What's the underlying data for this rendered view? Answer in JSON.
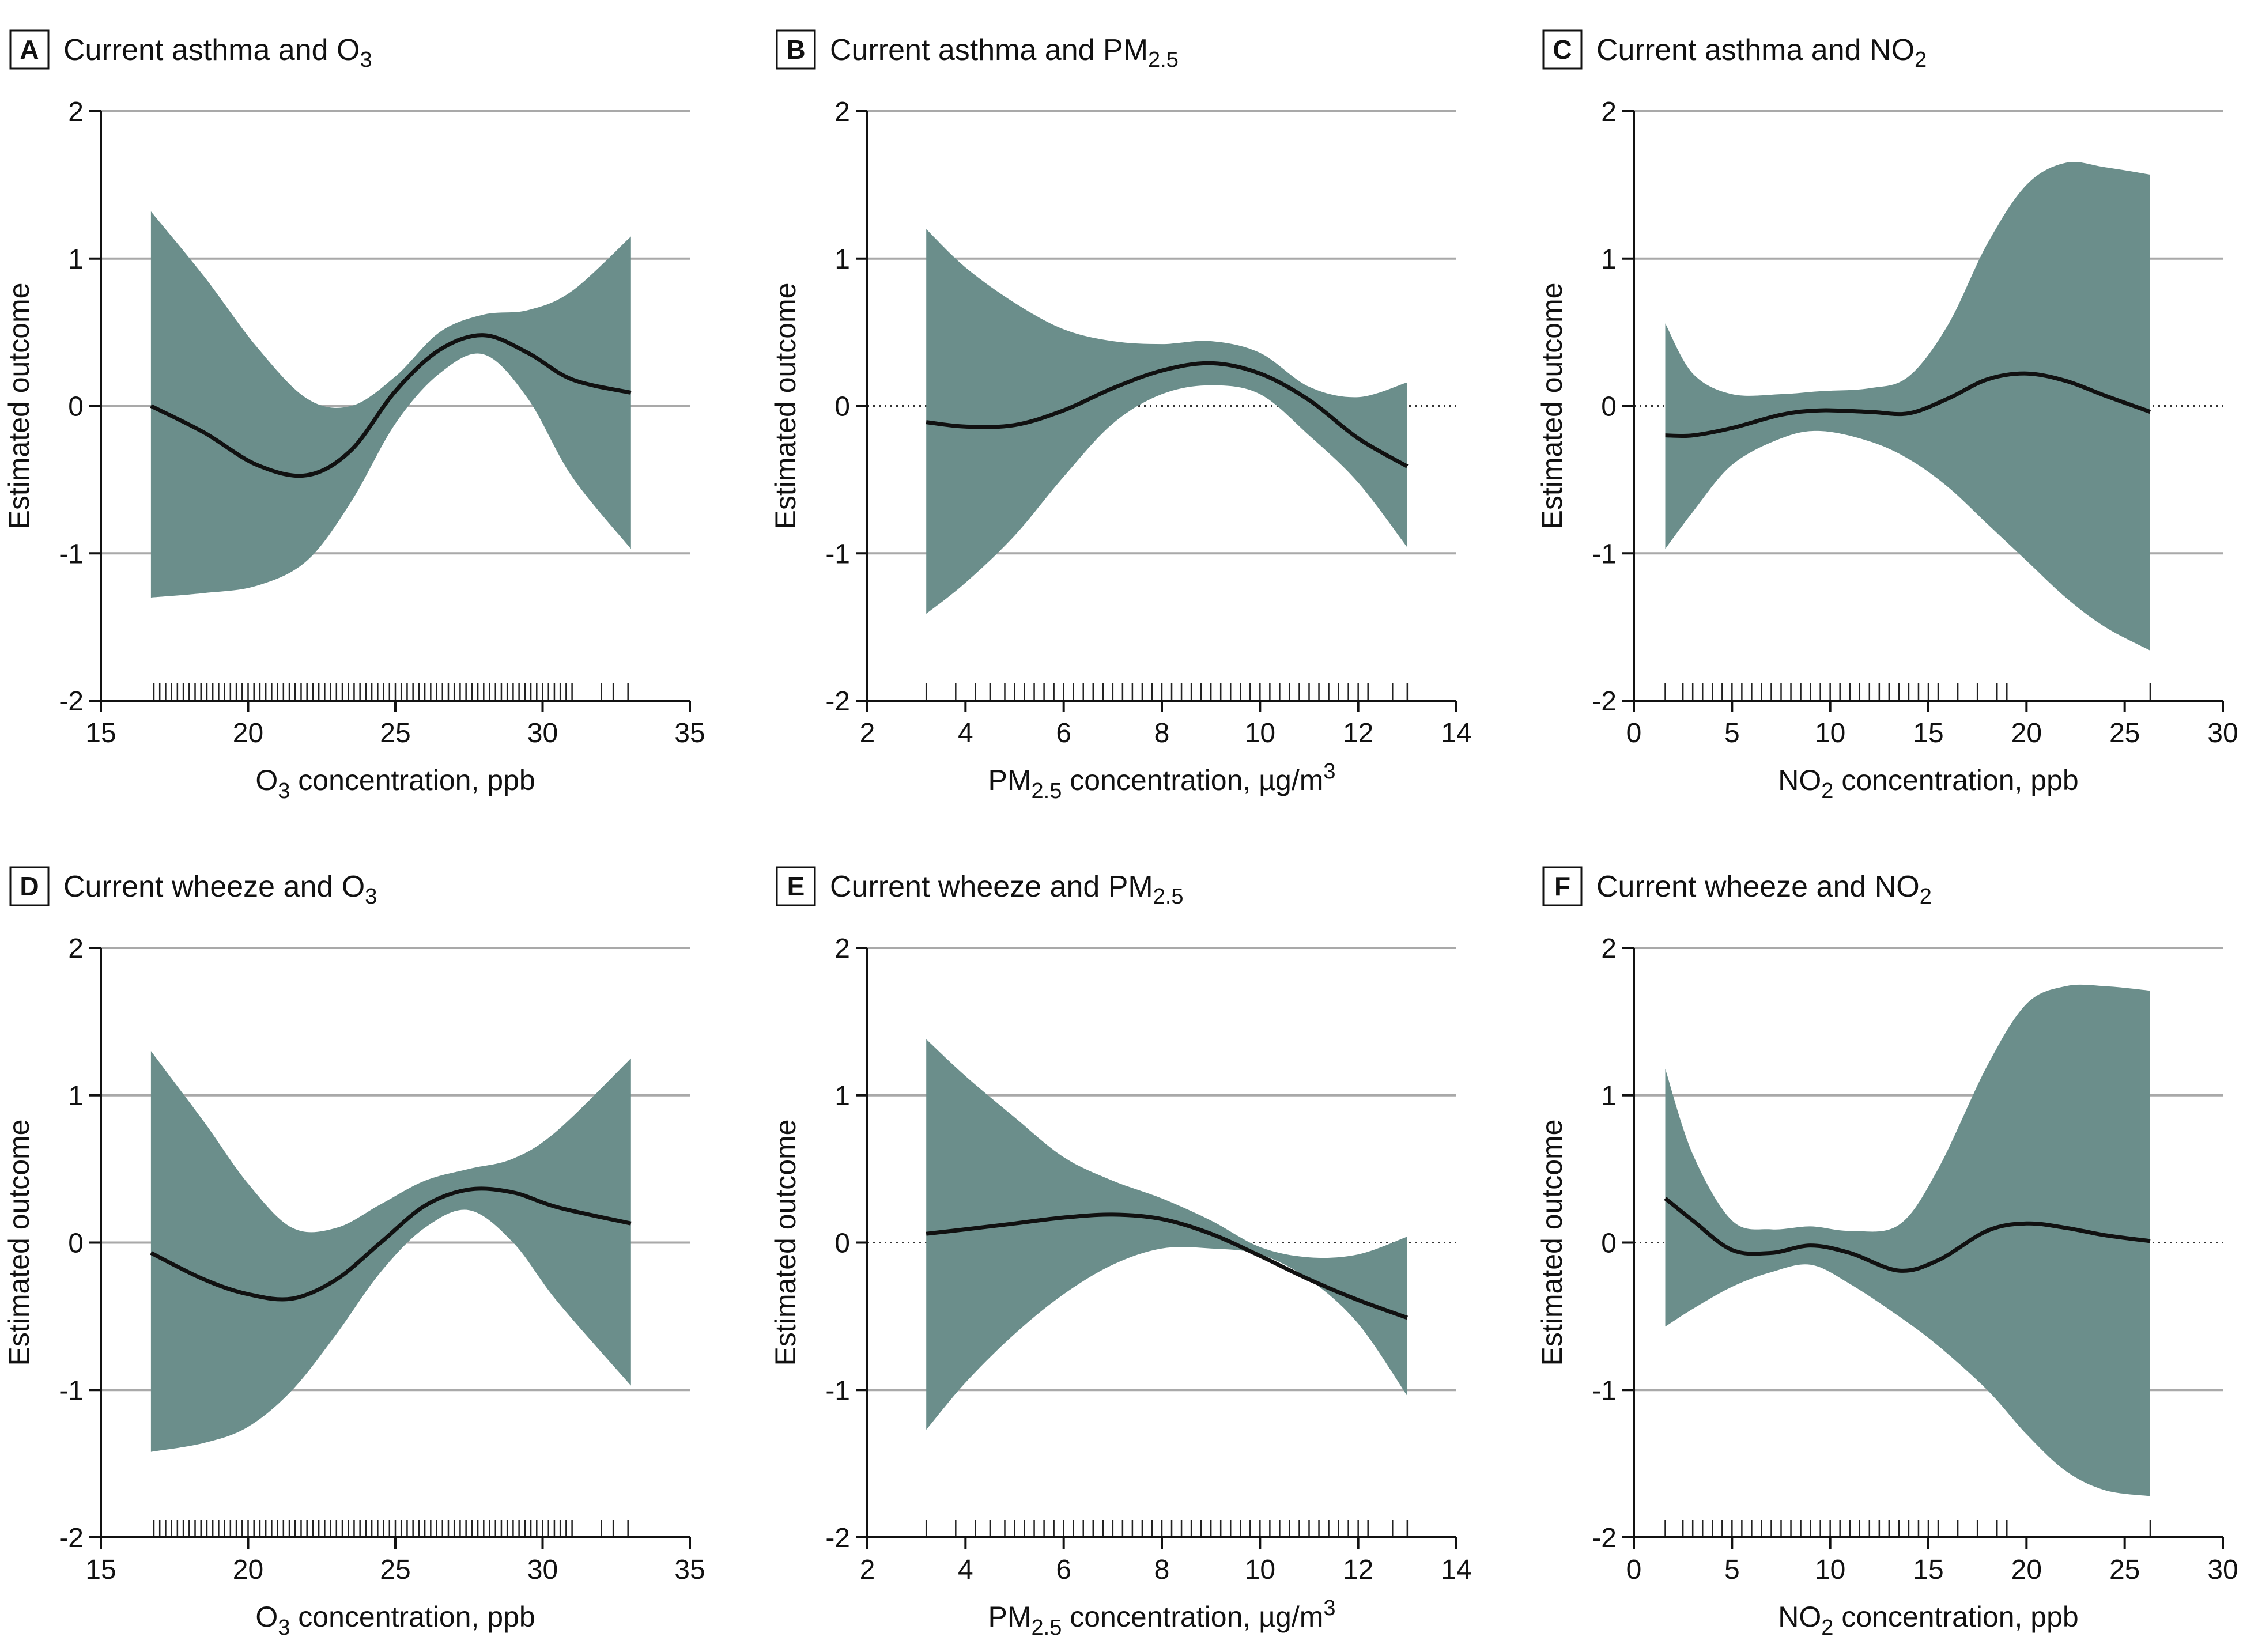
{
  "colors": {
    "band": "#6b8e8b",
    "line": "#111111",
    "grid": "#a9a9a9",
    "axis": "#111111"
  },
  "chart_data": [
    {
      "id": "A",
      "type": "line",
      "letter": "A",
      "title": "Current asthma and O",
      "title_sub": "3",
      "xlabel_pre": "O",
      "xlabel_sub": "3",
      "xlabel_post": " concentration, ppb",
      "xlabel_sup": "",
      "ylabel": "Estimated outcome",
      "xlim": [
        15,
        35
      ],
      "ylim": [
        -2,
        2
      ],
      "xticks": [
        15,
        20,
        25,
        30,
        35
      ],
      "xtick_labels": [
        "15",
        "20",
        "25",
        "30",
        "35"
      ],
      "yticks": [
        -2,
        -1,
        0,
        1,
        2
      ],
      "ytick_labels": [
        "-2",
        "-1",
        "0",
        "1",
        "2"
      ],
      "zero_dotted": false,
      "x": [
        16.7,
        18.5,
        20.3,
        22.0,
        23.5,
        25.0,
        26.5,
        28.0,
        29.5,
        31.0,
        33.0
      ],
      "estimate": [
        0.0,
        -0.18,
        -0.4,
        -0.47,
        -0.3,
        0.1,
        0.38,
        0.48,
        0.36,
        0.18,
        0.09
      ],
      "lower": [
        -1.3,
        -1.27,
        -1.22,
        -1.05,
        -0.65,
        -0.12,
        0.22,
        0.35,
        0.05,
        -0.48,
        -0.97
      ],
      "upper": [
        1.32,
        0.88,
        0.4,
        0.05,
        0.0,
        0.2,
        0.5,
        0.62,
        0.65,
        0.78,
        1.15
      ],
      "rug": [
        16.8,
        17.0,
        17.2,
        17.4,
        17.6,
        17.8,
        18.0,
        18.2,
        18.4,
        18.6,
        18.8,
        19.0,
        19.2,
        19.4,
        19.6,
        19.8,
        20.0,
        20.2,
        20.4,
        20.6,
        20.8,
        21.0,
        21.2,
        21.4,
        21.6,
        21.8,
        22.0,
        22.2,
        22.4,
        22.6,
        22.8,
        23.0,
        23.2,
        23.4,
        23.6,
        23.8,
        24.0,
        24.2,
        24.4,
        24.6,
        24.8,
        25.0,
        25.2,
        25.4,
        25.6,
        25.8,
        26.0,
        26.2,
        26.4,
        26.6,
        26.8,
        27.0,
        27.2,
        27.4,
        27.6,
        27.8,
        28.0,
        28.2,
        28.4,
        28.6,
        28.8,
        29.0,
        29.2,
        29.4,
        29.6,
        29.8,
        30.0,
        30.2,
        30.4,
        30.6,
        30.8,
        31.0,
        32.0,
        32.4,
        32.9
      ]
    },
    {
      "id": "B",
      "type": "line",
      "letter": "B",
      "title": "Current asthma and PM",
      "title_sub": "2.5",
      "xlabel_pre": "PM",
      "xlabel_sub": "2.5",
      "xlabel_post": " concentration, µg/m",
      "xlabel_sup": "3",
      "ylabel": "Estimated outcome",
      "xlim": [
        2,
        14
      ],
      "ylim": [
        -2,
        2
      ],
      "xticks": [
        2,
        4,
        6,
        8,
        10,
        12,
        14
      ],
      "xtick_labels": [
        "2",
        "4",
        "6",
        "8",
        "10",
        "12",
        "14"
      ],
      "yticks": [
        -2,
        -1,
        0,
        1,
        2
      ],
      "ytick_labels": [
        "-2",
        "-1",
        "0",
        "1",
        "2"
      ],
      "zero_dotted": true,
      "x": [
        3.2,
        4.0,
        5.0,
        6.0,
        7.0,
        8.0,
        9.0,
        10.0,
        11.0,
        12.0,
        13.0
      ],
      "estimate": [
        -0.11,
        -0.14,
        -0.13,
        -0.03,
        0.12,
        0.24,
        0.29,
        0.22,
        0.04,
        -0.22,
        -0.41
      ],
      "lower": [
        -1.41,
        -1.2,
        -0.88,
        -0.48,
        -0.12,
        0.08,
        0.14,
        0.08,
        -0.2,
        -0.52,
        -0.96
      ],
      "upper": [
        1.2,
        0.94,
        0.7,
        0.52,
        0.44,
        0.42,
        0.44,
        0.36,
        0.13,
        0.06,
        0.16
      ],
      "rug": [
        3.2,
        3.8,
        4.2,
        4.5,
        4.8,
        5.0,
        5.2,
        5.4,
        5.6,
        5.8,
        6.0,
        6.2,
        6.4,
        6.6,
        6.8,
        7.0,
        7.2,
        7.4,
        7.6,
        7.8,
        8.0,
        8.2,
        8.4,
        8.6,
        8.8,
        9.0,
        9.2,
        9.4,
        9.6,
        9.8,
        10.0,
        10.2,
        10.4,
        10.6,
        10.8,
        11.0,
        11.2,
        11.4,
        11.6,
        11.8,
        12.0,
        12.2,
        12.7,
        13.0
      ]
    },
    {
      "id": "C",
      "type": "line",
      "letter": "C",
      "title": "Current asthma and NO",
      "title_sub": "2",
      "xlabel_pre": "NO",
      "xlabel_sub": "2",
      "xlabel_post": " concentration, ppb",
      "xlabel_sup": "",
      "ylabel": "Estimated outcome",
      "xlim": [
        0,
        30
      ],
      "ylim": [
        -2,
        2
      ],
      "xticks": [
        0,
        5,
        10,
        15,
        20,
        25,
        30
      ],
      "xtick_labels": [
        "0",
        "5",
        "10",
        "15",
        "20",
        "25",
        "30"
      ],
      "yticks": [
        -2,
        -1,
        0,
        1,
        2
      ],
      "ytick_labels": [
        "-2",
        "-1",
        "0",
        "1",
        "2"
      ],
      "zero_dotted": true,
      "x": [
        1.6,
        3.0,
        5.0,
        7.5,
        9.5,
        12.0,
        14.0,
        16.0,
        18.0,
        20.0,
        22.0,
        24.0,
        26.3
      ],
      "estimate": [
        -0.2,
        -0.2,
        -0.15,
        -0.06,
        -0.03,
        -0.04,
        -0.05,
        0.05,
        0.18,
        0.22,
        0.17,
        0.07,
        -0.04
      ],
      "lower": [
        -0.97,
        -0.72,
        -0.4,
        -0.22,
        -0.17,
        -0.24,
        -0.36,
        -0.55,
        -0.8,
        -1.05,
        -1.3,
        -1.5,
        -1.66
      ],
      "upper": [
        0.56,
        0.22,
        0.08,
        0.08,
        0.1,
        0.12,
        0.2,
        0.55,
        1.1,
        1.5,
        1.65,
        1.62,
        1.57
      ],
      "rug": [
        1.6,
        2.5,
        3.0,
        3.5,
        4.0,
        4.5,
        5.0,
        5.5,
        6.0,
        6.5,
        7.0,
        7.5,
        8.0,
        8.5,
        9.0,
        9.5,
        10.0,
        10.5,
        11.0,
        11.5,
        12.0,
        12.5,
        13.0,
        13.5,
        14.0,
        14.5,
        15.0,
        15.5,
        16.5,
        17.5,
        18.5,
        19.0,
        26.3
      ]
    },
    {
      "id": "D",
      "type": "line",
      "letter": "D",
      "title": "Current wheeze and O",
      "title_sub": "3",
      "xlabel_pre": "O",
      "xlabel_sub": "3",
      "xlabel_post": " concentration, ppb",
      "xlabel_sup": "",
      "ylabel": "Estimated outcome",
      "xlim": [
        15,
        35
      ],
      "ylim": [
        -2,
        2
      ],
      "xticks": [
        15,
        20,
        25,
        30,
        35
      ],
      "xtick_labels": [
        "15",
        "20",
        "25",
        "30",
        "35"
      ],
      "yticks": [
        -2,
        -1,
        0,
        1,
        2
      ],
      "ytick_labels": [
        "-2",
        "-1",
        "0",
        "1",
        "2"
      ],
      "zero_dotted": false,
      "x": [
        16.7,
        18.5,
        20.0,
        21.5,
        23.0,
        24.5,
        26.0,
        27.5,
        29.0,
        30.5,
        33.0
      ],
      "estimate": [
        -0.07,
        -0.25,
        -0.35,
        -0.38,
        -0.25,
        0.0,
        0.25,
        0.36,
        0.34,
        0.24,
        0.13
      ],
      "lower": [
        -1.42,
        -1.36,
        -1.25,
        -1.0,
        -0.62,
        -0.2,
        0.1,
        0.22,
        0.0,
        -0.4,
        -0.97
      ],
      "upper": [
        1.3,
        0.82,
        0.4,
        0.1,
        0.1,
        0.26,
        0.42,
        0.5,
        0.57,
        0.76,
        1.25
      ],
      "rug": [
        16.8,
        17.0,
        17.2,
        17.4,
        17.6,
        17.8,
        18.0,
        18.2,
        18.4,
        18.6,
        18.8,
        19.0,
        19.2,
        19.4,
        19.6,
        19.8,
        20.0,
        20.2,
        20.4,
        20.6,
        20.8,
        21.0,
        21.2,
        21.4,
        21.6,
        21.8,
        22.0,
        22.2,
        22.4,
        22.6,
        22.8,
        23.0,
        23.2,
        23.4,
        23.6,
        23.8,
        24.0,
        24.2,
        24.4,
        24.6,
        24.8,
        25.0,
        25.2,
        25.4,
        25.6,
        25.8,
        26.0,
        26.2,
        26.4,
        26.6,
        26.8,
        27.0,
        27.2,
        27.4,
        27.6,
        27.8,
        28.0,
        28.2,
        28.4,
        28.6,
        28.8,
        29.0,
        29.2,
        29.4,
        29.6,
        29.8,
        30.0,
        30.2,
        30.4,
        30.6,
        30.8,
        31.0,
        32.0,
        32.4,
        32.9
      ]
    },
    {
      "id": "E",
      "type": "line",
      "letter": "E",
      "title": "Current wheeze and PM",
      "title_sub": "2.5",
      "xlabel_pre": "PM",
      "xlabel_sub": "2.5",
      "xlabel_post": " concentration, µg/m",
      "xlabel_sup": "3",
      "ylabel": "Estimated outcome",
      "xlim": [
        2,
        14
      ],
      "ylim": [
        -2,
        2
      ],
      "xticks": [
        2,
        4,
        6,
        8,
        10,
        12,
        14
      ],
      "xtick_labels": [
        "2",
        "4",
        "6",
        "8",
        "10",
        "12",
        "14"
      ],
      "yticks": [
        -2,
        -1,
        0,
        1,
        2
      ],
      "ytick_labels": [
        "-2",
        "-1",
        "0",
        "1",
        "2"
      ],
      "zero_dotted": true,
      "x": [
        3.2,
        4.0,
        5.0,
        6.0,
        7.0,
        8.0,
        9.0,
        10.0,
        11.0,
        12.0,
        13.0
      ],
      "estimate": [
        0.06,
        0.09,
        0.13,
        0.17,
        0.19,
        0.16,
        0.06,
        -0.09,
        -0.25,
        -0.39,
        -0.51
      ],
      "lower": [
        -1.27,
        -0.95,
        -0.62,
        -0.35,
        -0.15,
        -0.04,
        -0.04,
        -0.08,
        -0.25,
        -0.55,
        -1.04
      ],
      "upper": [
        1.38,
        1.13,
        0.85,
        0.58,
        0.42,
        0.3,
        0.15,
        -0.03,
        -0.1,
        -0.08,
        0.04
      ],
      "rug": [
        3.2,
        3.8,
        4.2,
        4.5,
        4.8,
        5.0,
        5.2,
        5.4,
        5.6,
        5.8,
        6.0,
        6.2,
        6.4,
        6.6,
        6.8,
        7.0,
        7.2,
        7.4,
        7.6,
        7.8,
        8.0,
        8.2,
        8.4,
        8.6,
        8.8,
        9.0,
        9.2,
        9.4,
        9.6,
        9.8,
        10.0,
        10.2,
        10.4,
        10.6,
        10.8,
        11.0,
        11.2,
        11.4,
        11.6,
        11.8,
        12.0,
        12.2,
        12.7,
        13.0
      ]
    },
    {
      "id": "F",
      "type": "line",
      "letter": "F",
      "title": "Current wheeze and NO",
      "title_sub": "2",
      "xlabel_pre": "NO",
      "xlabel_sub": "2",
      "xlabel_post": " concentration, ppb",
      "xlabel_sup": "",
      "ylabel": "Estimated outcome",
      "xlim": [
        0,
        30
      ],
      "ylim": [
        -2,
        2
      ],
      "xticks": [
        0,
        5,
        10,
        15,
        20,
        25,
        30
      ],
      "xtick_labels": [
        "0",
        "5",
        "10",
        "15",
        "20",
        "25",
        "30"
      ],
      "yticks": [
        -2,
        -1,
        0,
        1,
        2
      ],
      "ytick_labels": [
        "-2",
        "-1",
        "0",
        "1",
        "2"
      ],
      "zero_dotted": true,
      "x": [
        1.6,
        3.0,
        5.0,
        7.0,
        9.0,
        11.0,
        13.5,
        15.5,
        18.0,
        20.0,
        22.0,
        24.0,
        26.3
      ],
      "estimate": [
        0.3,
        0.15,
        -0.05,
        -0.07,
        -0.02,
        -0.07,
        -0.19,
        -0.12,
        0.08,
        0.13,
        0.1,
        0.05,
        0.01
      ],
      "lower": [
        -0.57,
        -0.45,
        -0.3,
        -0.2,
        -0.15,
        -0.28,
        -0.5,
        -0.7,
        -1.0,
        -1.3,
        -1.55,
        -1.68,
        -1.72
      ],
      "upper": [
        1.18,
        0.6,
        0.15,
        0.09,
        0.11,
        0.08,
        0.12,
        0.5,
        1.2,
        1.62,
        1.74,
        1.74,
        1.71
      ],
      "rug": [
        1.6,
        2.5,
        3.0,
        3.5,
        4.0,
        4.5,
        5.0,
        5.5,
        6.0,
        6.5,
        7.0,
        7.5,
        8.0,
        8.5,
        9.0,
        9.5,
        10.0,
        10.5,
        11.0,
        11.5,
        12.0,
        12.5,
        13.0,
        13.5,
        14.0,
        14.5,
        15.0,
        15.5,
        16.5,
        17.5,
        18.5,
        19.0,
        26.3
      ]
    }
  ]
}
